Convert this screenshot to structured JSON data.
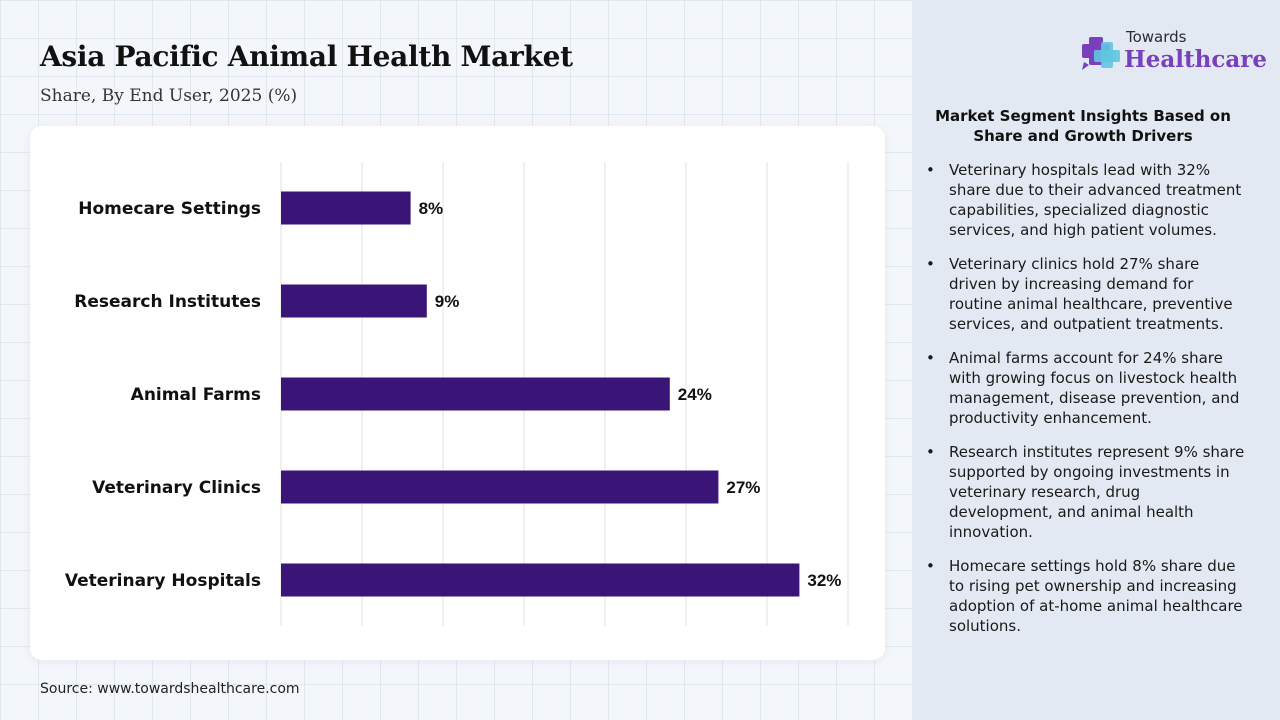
{
  "header": {
    "title": "Asia Pacific Animal Health Market",
    "subtitle": "Share, By End User, 2025 (%)"
  },
  "source": "Source: www.towardshealthcare.com",
  "logo": {
    "top": "Towards",
    "main": "Healthcare",
    "icon": "cross-plus-icon"
  },
  "insights": {
    "title": "Market Segment Insights Based on Share and Growth Drivers",
    "bullets": [
      "Veterinary hospitals lead with 32% share due to their advanced treatment capabilities, specialized diagnostic services, and high patient volumes.",
      "Veterinary clinics hold 27% share driven by increasing demand for routine animal healthcare, preventive services, and outpatient treatments.",
      "Animal farms account for 24% share with growing focus on livestock health management, disease prevention, and productivity enhancement.",
      "Research institutes represent 9% share supported by ongoing investments in veterinary research, drug development, and animal health innovation.",
      "Homecare settings hold 8% share due to rising pet ownership and increasing adoption of at-home animal healthcare solutions."
    ]
  },
  "colors": {
    "bar": "#3b1478",
    "accent": "#7a3fbd",
    "panel": "#e3e9f2"
  },
  "chart_data": {
    "type": "bar",
    "orientation": "horizontal",
    "categories": [
      "Homecare Settings",
      "Research Institutes",
      "Animal Farms",
      "Veterinary Clinics",
      "Veterinary Hospitals"
    ],
    "values": [
      8,
      9,
      24,
      27,
      32
    ],
    "value_labels": [
      "8%",
      "9%",
      "24%",
      "27%",
      "32%"
    ],
    "xlim": [
      0,
      35
    ],
    "grid": true,
    "legend": "none"
  }
}
